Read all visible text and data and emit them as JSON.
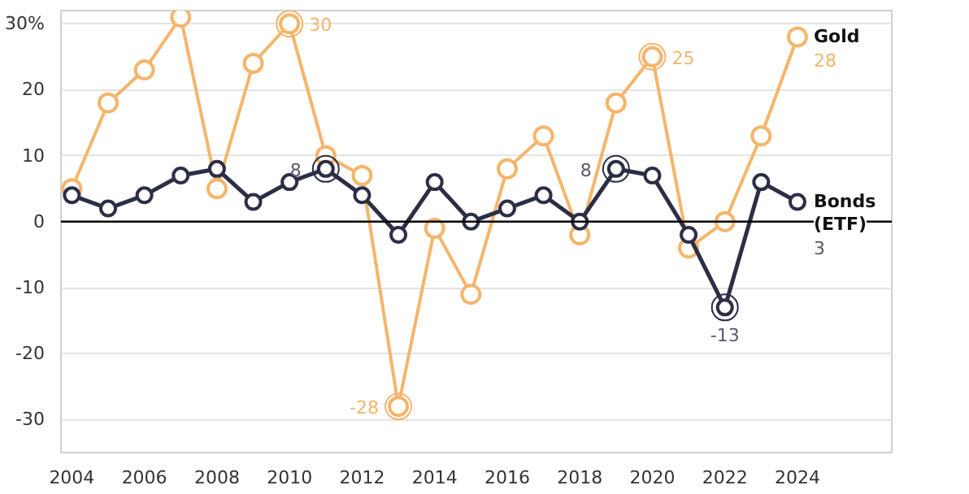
{
  "chart_data": {
    "type": "line",
    "x": [
      2004,
      2005,
      2006,
      2007,
      2008,
      2009,
      2010,
      2011,
      2012,
      2013,
      2014,
      2015,
      2016,
      2017,
      2018,
      2019,
      2020,
      2021,
      2022,
      2023,
      2024
    ],
    "series": [
      {
        "name": "Gold",
        "color": "#f5b56b",
        "values": [
          5,
          18,
          23,
          31,
          5,
          24,
          30,
          10,
          7,
          -28,
          -1,
          -11,
          8,
          13,
          -2,
          18,
          25,
          -4,
          0,
          13,
          28
        ],
        "value_labels": [
          null,
          null,
          null,
          null,
          null,
          null,
          "30",
          null,
          null,
          "-28",
          null,
          null,
          null,
          null,
          null,
          null,
          "25",
          null,
          null,
          null,
          "28"
        ]
      },
      {
        "name": "Bonds (ETF)",
        "color": "#2b2e45",
        "values": [
          4,
          2,
          4,
          7,
          8,
          3,
          6,
          8,
          4,
          -2,
          6,
          0,
          2,
          4,
          0,
          8,
          7,
          -2,
          -13,
          6,
          3
        ],
        "value_labels": [
          null,
          null,
          null,
          null,
          null,
          null,
          null,
          "8",
          null,
          null,
          null,
          null,
          null,
          null,
          null,
          "8",
          null,
          null,
          "-13",
          null,
          "3"
        ]
      }
    ],
    "xlim": [
      2003.7,
      2026.6
    ],
    "xticks": [
      2004,
      2006,
      2008,
      2010,
      2012,
      2014,
      2016,
      2018,
      2020,
      2022,
      2024
    ],
    "ylim": [
      -35,
      32
    ],
    "yticks": [
      {
        "value": -30,
        "label": "-30"
      },
      {
        "value": -20,
        "label": "-20"
      },
      {
        "value": -10,
        "label": "-10"
      },
      {
        "value": 0,
        "label": "0"
      },
      {
        "value": 10,
        "label": "10"
      },
      {
        "value": 20,
        "label": "20"
      },
      {
        "value": 30,
        "label": "30%"
      }
    ],
    "ref_lines": [
      {
        "axis": "y",
        "value": 0,
        "color": "#000000"
      }
    ],
    "grid": "y",
    "legend": false,
    "marker": "circle",
    "line_style": "solid"
  }
}
